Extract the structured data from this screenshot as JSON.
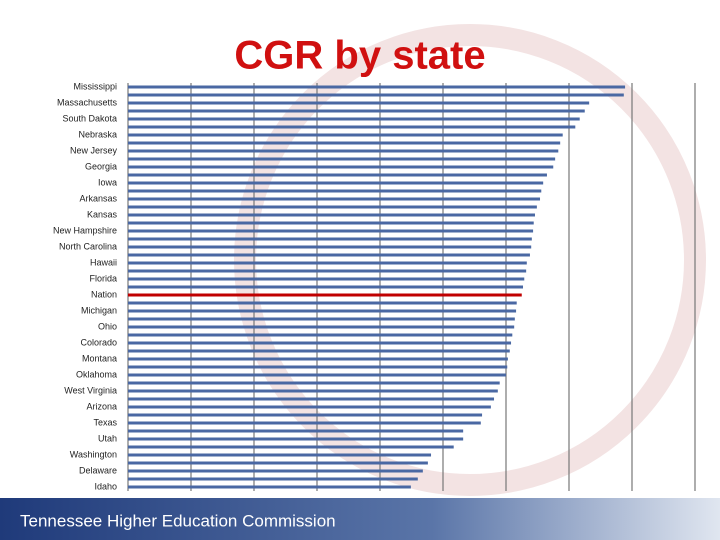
{
  "chart_data": {
    "type": "barh",
    "title": "CGR by state",
    "footer": "Tennessee Higher Education Commission",
    "categories": [
      "Mississippi",
      null,
      "Massachusetts",
      null,
      "South Dakota",
      null,
      "Nebraska",
      null,
      "New Jersey",
      null,
      "Georgia",
      null,
      "Iowa",
      null,
      "Arkansas",
      null,
      "Kansas",
      null,
      "New Hampshire",
      null,
      "North Carolina",
      null,
      "Hawaii",
      null,
      "Florida",
      null,
      "Nation",
      null,
      "Michigan",
      null,
      "Ohio",
      null,
      "Colorado",
      null,
      "Montana",
      null,
      "Oklahoma",
      null,
      "West Virginia",
      null,
      "Arizona",
      null,
      "Texas",
      null,
      "Utah",
      null,
      "Washington",
      null,
      "Delaware",
      null,
      "Idaho"
    ],
    "values": [
      7.89,
      7.87,
      7.32,
      7.25,
      7.17,
      7.1,
      6.9,
      6.86,
      6.83,
      6.78,
      6.75,
      6.65,
      6.59,
      6.56,
      6.54,
      6.49,
      6.46,
      6.44,
      6.43,
      6.41,
      6.4,
      6.38,
      6.33,
      6.32,
      6.29,
      6.27,
      6.25,
      6.17,
      6.16,
      6.14,
      6.13,
      6.1,
      6.08,
      6.06,
      6.03,
      6.02,
      6.0,
      5.9,
      5.87,
      5.81,
      5.76,
      5.62,
      5.6,
      5.32,
      5.32,
      5.17,
      4.81,
      4.76,
      4.68,
      4.6,
      4.49
    ],
    "colors": [
      "#4a68a3",
      "#4a68a3",
      "#4a68a3",
      "#4a68a3",
      "#4a68a3",
      "#4a68a3",
      "#4a68a3",
      "#4a68a3",
      "#4a68a3",
      "#4a68a3",
      "#4a68a3",
      "#4a68a3",
      "#4a68a3",
      "#4a68a3",
      "#4a68a3",
      "#4a68a3",
      "#4a68a3",
      "#4a68a3",
      "#4a68a3",
      "#4a68a3",
      "#4a68a3",
      "#4a68a3",
      "#4a68a3",
      "#4a68a3",
      "#4a68a3",
      "#4a68a3",
      "#c00000",
      "#4a68a3",
      "#4a68a3",
      "#4a68a3",
      "#4a68a3",
      "#4a68a3",
      "#4a68a3",
      "#4a68a3",
      "#4a68a3",
      "#4a68a3",
      "#4a68a3",
      "#4a68a3",
      "#4a68a3",
      "#4a68a3",
      "#4a68a3",
      "#4a68a3",
      "#4a68a3",
      "#4a68a3",
      "#4a68a3",
      "#4a68a3",
      "#4a68a3",
      "#4a68a3",
      "#4a68a3",
      "#4a68a3",
      "#4a68a3"
    ],
    "xlim": [
      0,
      9
    ],
    "xticks": [
      0,
      1,
      2,
      3,
      4,
      5,
      6,
      7,
      8,
      9
    ],
    "grid": true
  }
}
